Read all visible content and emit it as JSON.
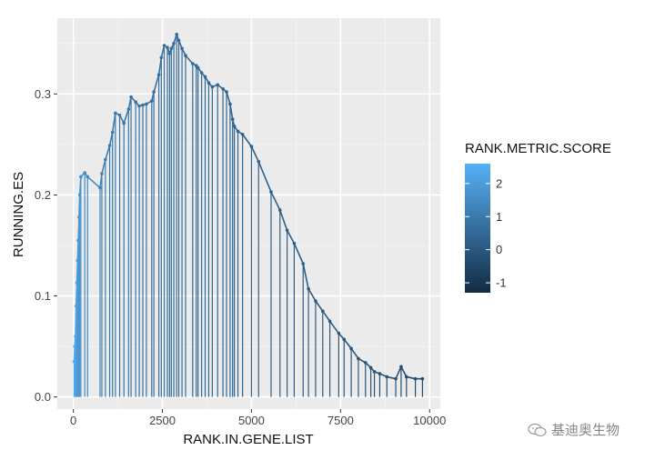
{
  "chart_data": {
    "type": "line",
    "xlabel": "RANK.IN.GENE.LIST",
    "ylabel": "RUNNING.ES",
    "xlim": [
      -450,
      10300
    ],
    "ylim": [
      -0.012,
      0.375
    ],
    "x_ticks": [
      0,
      2500,
      5000,
      7500,
      10000
    ],
    "x_tick_labels": [
      "0",
      "2500",
      "5000",
      "7500",
      "10000"
    ],
    "y_ticks": [
      0.0,
      0.1,
      0.2,
      0.3
    ],
    "y_tick_labels": [
      "0.0",
      "0.1",
      "0.2",
      "0.3"
    ],
    "grid": true,
    "legend": {
      "title": "RANK.METRIC.SCORE",
      "placement": "right",
      "type": "colorbar",
      "min": -1.3,
      "max": 2.6,
      "ticks": [
        2,
        1,
        0,
        -1
      ],
      "tick_labels": [
        "2",
        "1",
        "0",
        "-1"
      ],
      "low_color": "#132b43",
      "high_color": "#56b1f7"
    },
    "series": [
      {
        "x": [
          20,
          40,
          60,
          80,
          100,
          120,
          140,
          160,
          180,
          210,
          320,
          400,
          750,
          800,
          900,
          1020,
          1100,
          1180,
          1300,
          1420,
          1550,
          1620,
          1750,
          1850,
          1950,
          2050,
          2200,
          2260,
          2400,
          2470,
          2550,
          2640,
          2700,
          2750,
          2820,
          2900,
          2960,
          3050,
          3150,
          3350,
          3450,
          3500,
          3600,
          3700,
          3800,
          3900,
          4050,
          4200,
          4300,
          4400,
          4470,
          4520,
          4620,
          4750,
          5000,
          5200,
          5550,
          5800,
          6000,
          6200,
          6450,
          6600,
          6800,
          7000,
          7200,
          7450,
          7600,
          7800,
          8000,
          8200,
          8350,
          8450,
          8600,
          8800,
          9050,
          9200,
          9350,
          9600,
          9800
        ],
        "y": [
          0.035,
          0.05,
          0.06,
          0.09,
          0.113,
          0.135,
          0.155,
          0.178,
          0.2,
          0.218,
          0.222,
          0.218,
          0.207,
          0.221,
          0.235,
          0.249,
          0.262,
          0.281,
          0.279,
          0.271,
          0.285,
          0.297,
          0.292,
          0.288,
          0.289,
          0.29,
          0.293,
          0.302,
          0.319,
          0.336,
          0.348,
          0.346,
          0.34,
          0.345,
          0.35,
          0.359,
          0.353,
          0.345,
          0.338,
          0.33,
          0.328,
          0.326,
          0.321,
          0.317,
          0.311,
          0.307,
          0.309,
          0.305,
          0.302,
          0.29,
          0.275,
          0.268,
          0.263,
          0.26,
          0.248,
          0.233,
          0.203,
          0.185,
          0.165,
          0.152,
          0.132,
          0.107,
          0.095,
          0.085,
          0.075,
          0.063,
          0.057,
          0.048,
          0.038,
          0.034,
          0.029,
          0.025,
          0.023,
          0.02,
          0.018,
          0.03,
          0.02,
          0.018,
          0.018
        ],
        "scores": [
          2.4,
          2.3,
          2.2,
          2.1,
          2.0,
          1.9,
          1.85,
          1.8,
          1.75,
          1.6,
          1.5,
          1.45,
          1.3,
          1.2,
          1.1,
          1.05,
          1.0,
          1.0,
          0.95,
          0.9,
          0.9,
          0.85,
          0.85,
          0.8,
          0.8,
          0.8,
          0.75,
          0.75,
          0.7,
          0.7,
          0.7,
          0.65,
          0.65,
          0.65,
          0.6,
          0.6,
          0.6,
          0.55,
          0.55,
          0.55,
          0.5,
          0.5,
          0.5,
          0.45,
          0.45,
          0.45,
          0.45,
          0.4,
          0.4,
          0.4,
          0.35,
          0.35,
          0.35,
          0.3,
          0.3,
          0.25,
          0.25,
          0.2,
          0.2,
          0.15,
          0.15,
          0.1,
          0.1,
          0.05,
          0.05,
          0.0,
          0.0,
          -0.05,
          -0.1,
          -0.1,
          -0.15,
          -0.15,
          -0.2,
          -0.2,
          -0.25,
          -0.3,
          -0.3,
          -0.35,
          -0.4
        ]
      }
    ]
  },
  "watermark": {
    "text": "基迪奥生物",
    "icon": "wechat-icon"
  }
}
